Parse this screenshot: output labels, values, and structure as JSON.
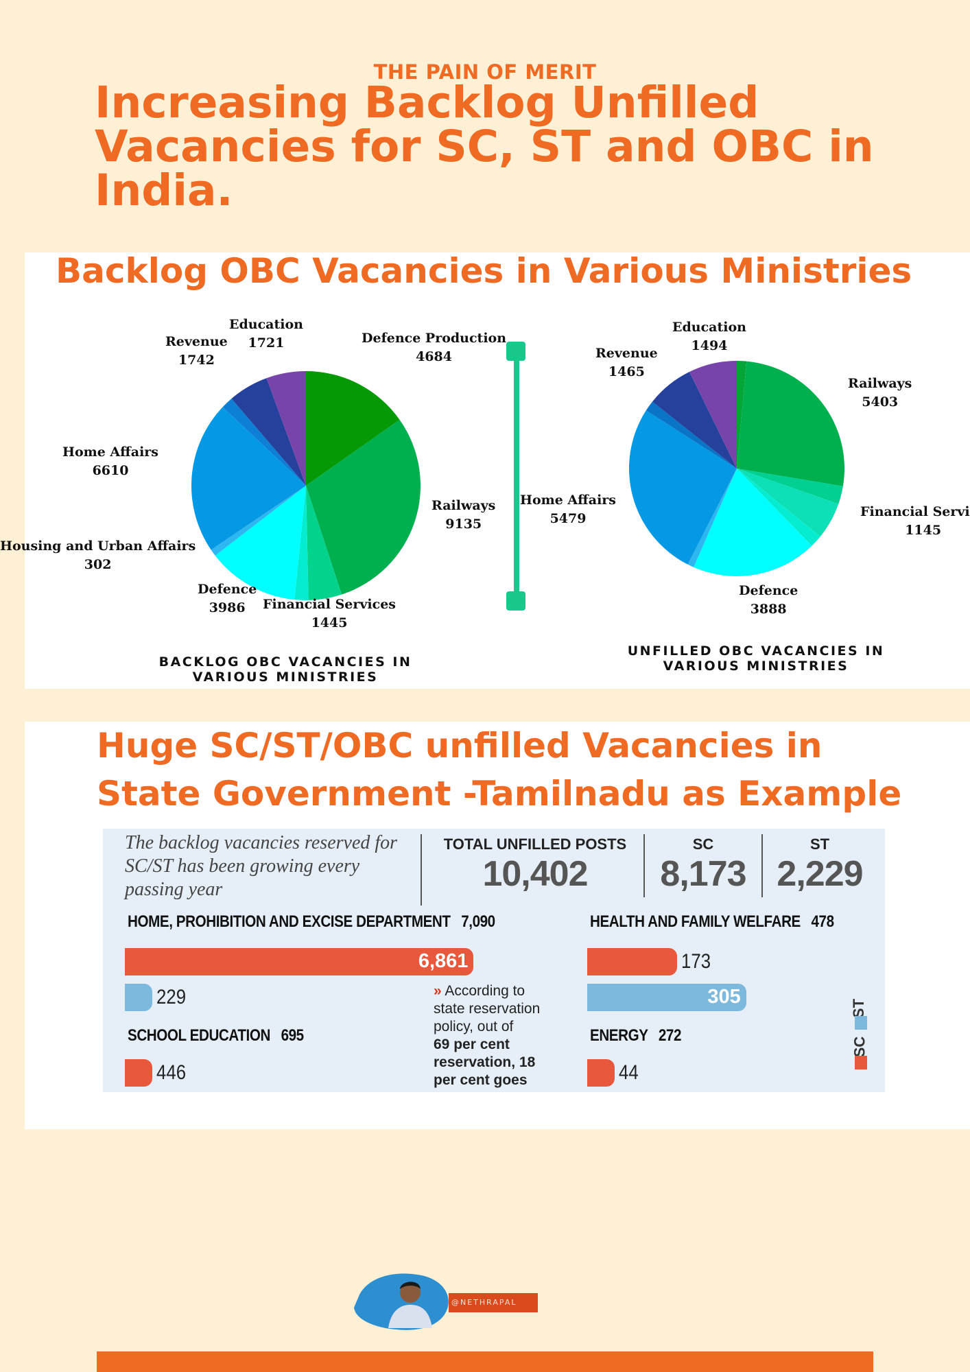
{
  "header": {
    "kicker": "THE PAIN OF MERIT",
    "title": "Increasing Backlog Unfilled Vacancies for SC, ST and OBC in India."
  },
  "obc_section": {
    "heading": "Backlog OBC Vacancies in Various Ministries",
    "left_caption_line1": "BACKLOG OBC VACANCIES IN",
    "left_caption_line2": "VARIOUS MINISTRIES",
    "right_caption_line1": "UNFILLED OBC VACANCIES IN",
    "right_caption_line2": "VARIOUS MINISTRIES"
  },
  "tn_section": {
    "heading_line1": "Huge SC/ST/OBC unfilled Vacancies in",
    "heading_line2": "State Government -Tamilnadu as Example",
    "clip": {
      "intro": "The backlog vacancies reserved for SC/ST has been growing every passing year",
      "total_label": "TOTAL UNFILLED POSTS",
      "total_value": "10,402",
      "sc_label": "SC",
      "sc_value": "8,173",
      "st_label": "ST",
      "st_value": "2,229",
      "note_line1": "According to",
      "note_line2": "state reservation",
      "note_line3": "policy, out of",
      "note_line4": "69 per cent",
      "note_line5": "reservation, 18",
      "note_line6": "per cent goes",
      "legend_st": "ST",
      "legend_sc": "SC"
    }
  },
  "footer": {
    "handle": "@NETHRAPAL"
  },
  "colors": {
    "accent": "#ef6a23",
    "background": "#fdf0d5",
    "slider": "#19c98c",
    "sc_bar": "#e8583c",
    "st_bar": "#7db9dd"
  },
  "chart_data": [
    {
      "type": "pie",
      "title": "BACKLOG OBC VACANCIES IN VARIOUS MINISTRIES",
      "categories": [
        "Defence Production",
        "Railways",
        "Financial Services",
        "Defence",
        "Housing and Urban Affairs",
        "Home Affairs",
        "Revenue",
        "Education"
      ],
      "values": [
        4684,
        9135,
        1445,
        3986,
        302,
        6610,
        1742,
        1721
      ],
      "colors": [
        "#059a05",
        "#00b04f",
        "#03d38c",
        "#05ecd0",
        "#00ffff",
        "#2db6f0",
        "#0598e4",
        "#0d80d6",
        "#25419c",
        "#7745aa"
      ],
      "slices_drawn": [
        {
          "category": "Defence Production",
          "value": 4684
        },
        {
          "category": "Railways",
          "value": 9135
        },
        {
          "category": "Financial Services",
          "value": 1445
        },
        {
          "category": "",
          "value": 600
        },
        {
          "category": "Defence",
          "value": 3986
        },
        {
          "category": "Housing and Urban Affairs",
          "value": 302
        },
        {
          "category": "Home Affairs",
          "value": 6610
        },
        {
          "category": "",
          "value": 520
        },
        {
          "category": "Revenue",
          "value": 1742
        },
        {
          "category": "Education",
          "value": 1721
        }
      ]
    },
    {
      "type": "pie",
      "title": "UNFILLED OBC VACANCIES IN VARIOUS MINISTRIES",
      "categories": [
        "Railways",
        "Financial Service",
        "Defence",
        "Home Affairs",
        "Revenue",
        "Education"
      ],
      "values": [
        5403,
        1145,
        3888,
        5479,
        1465,
        1494
      ],
      "slices_drawn": [
        {
          "category": "",
          "value": 300
        },
        {
          "category": "Railways",
          "value": 5403
        },
        {
          "category": "",
          "value": 560
        },
        {
          "category": "Financial Service",
          "value": 1145
        },
        {
          "category": "",
          "value": 380
        },
        {
          "category": "Defence",
          "value": 3888
        },
        {
          "category": "",
          "value": 200
        },
        {
          "category": "Home Affairs",
          "value": 5479
        },
        {
          "category": "",
          "value": 330
        },
        {
          "category": "Revenue",
          "value": 1465
        },
        {
          "category": "Education",
          "value": 1494
        }
      ],
      "colors": [
        "#05a53a",
        "#00b04f",
        "#02cf92",
        "#0de0b6",
        "#05ecd0",
        "#00ffff",
        "#2db6f0",
        "#0598e4",
        "#0a74c7",
        "#25419c",
        "#7745aa"
      ]
    },
    {
      "type": "bar",
      "title": "TOTAL UNFILLED POSTS",
      "departments": [
        {
          "name": "HOME, PROHIBITION AND EXCISE DEPARTMENT",
          "total": "7,090",
          "sc": 6861,
          "st": 229
        },
        {
          "name": "HEALTH AND FAMILY WELFARE",
          "total": "478",
          "sc": 173,
          "st": 305
        },
        {
          "name": "SCHOOL EDUCATION",
          "total": "695",
          "sc": 446,
          "st": null
        },
        {
          "name": "ENERGY",
          "total": "272",
          "sc": 44,
          "st": null
        }
      ],
      "series": [
        {
          "name": "SC"
        },
        {
          "name": "ST"
        }
      ]
    }
  ]
}
